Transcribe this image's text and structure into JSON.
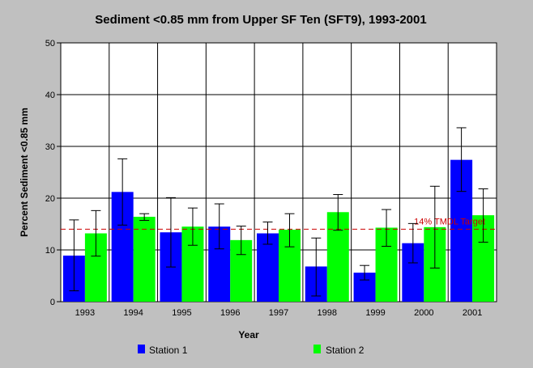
{
  "chart_data": {
    "type": "bar",
    "title": "Sediment <0.85 mm from Upper SF Ten (SFT9), 1993-2001",
    "xlabel": "Year",
    "ylabel": "Percent Sediment <0.85 mm",
    "ylim": [
      0,
      50
    ],
    "yticks": [
      0,
      10,
      20,
      30,
      40,
      50
    ],
    "grid": true,
    "legend_position": "bottom",
    "categories": [
      "1993",
      "1994",
      "1995",
      "1996",
      "1997",
      "1998",
      "1999",
      "2000",
      "2001"
    ],
    "series": [
      {
        "name": "Station 1",
        "color": "#0000ff",
        "values": [
          8.9,
          21.2,
          13.4,
          14.5,
          13.2,
          6.8,
          5.6,
          11.3,
          27.4
        ],
        "error_low": [
          2.1,
          14.8,
          6.7,
          10.2,
          11.1,
          1.1,
          4.2,
          7.5,
          21.3
        ],
        "error_high": [
          15.8,
          27.6,
          20.1,
          18.9,
          15.4,
          12.3,
          7.0,
          15.1,
          33.6
        ]
      },
      {
        "name": "Station 2",
        "color": "#00ff00",
        "values": [
          13.2,
          16.4,
          14.5,
          11.9,
          13.9,
          17.3,
          14.3,
          14.4,
          16.7
        ],
        "error_low": [
          8.8,
          15.7,
          10.9,
          9.1,
          10.6,
          13.8,
          10.7,
          6.5,
          11.5
        ],
        "error_high": [
          17.6,
          17.0,
          18.1,
          14.6,
          17.0,
          20.7,
          17.8,
          22.3,
          21.8
        ]
      }
    ],
    "reference_line": {
      "label": "14% TMDL Target",
      "value": 14,
      "color": "#cc0000",
      "style": "dashed"
    }
  }
}
